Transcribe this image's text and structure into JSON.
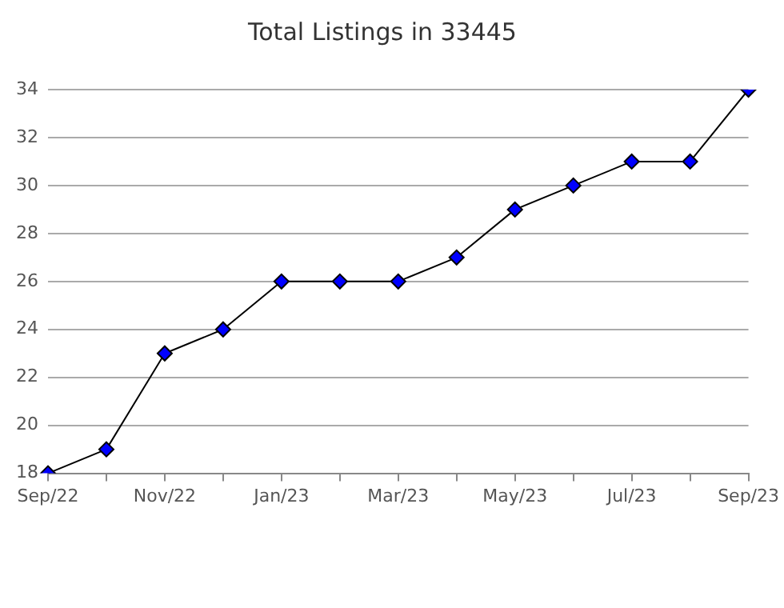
{
  "chart_data": {
    "type": "line",
    "title": "Total Listings in 33445",
    "categories": [
      "Sep/22",
      null,
      "Nov/22",
      null,
      "Jan/23",
      null,
      "Mar/23",
      null,
      "May/23",
      null,
      "Jul/23",
      null,
      "Sep/23"
    ],
    "series": [
      {
        "color": "#0000ff",
        "values": [
          18,
          19,
          23,
          24,
          26,
          26,
          26,
          27,
          29,
          30,
          31,
          31,
          34
        ]
      }
    ],
    "ylim": [
      18,
      34
    ],
    "yticks": [
      18,
      20,
      22,
      24,
      26,
      28,
      30,
      32,
      34
    ],
    "grid": "y",
    "legend": false,
    "marker": "diamond",
    "line_style": "solid"
  }
}
